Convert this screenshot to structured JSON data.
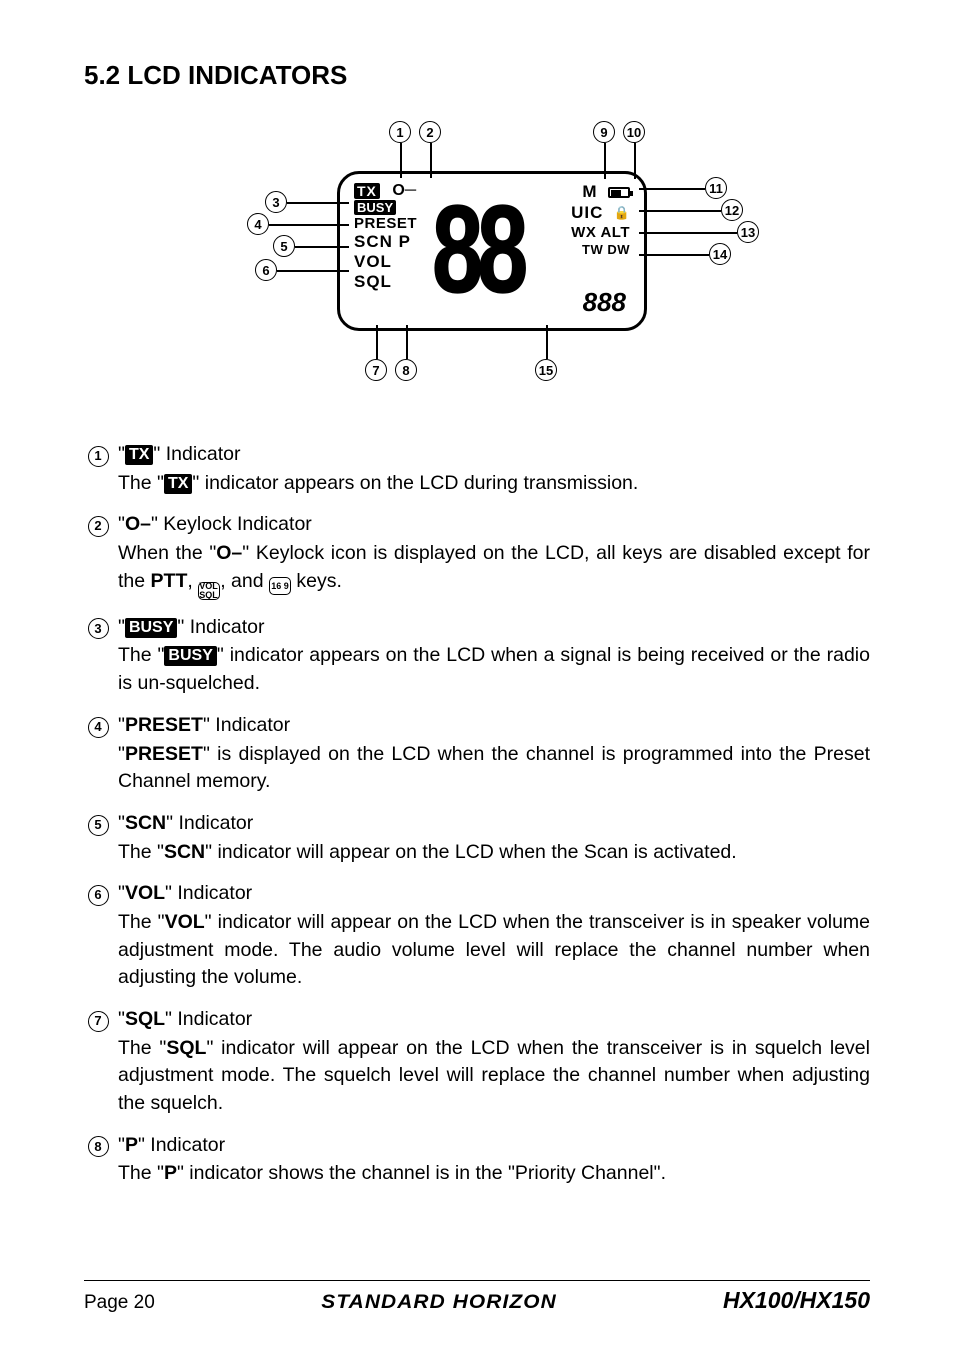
{
  "section_title": "5.2 LCD INDICATORS",
  "diagram": {
    "labels": [
      "1",
      "2",
      "3",
      "4",
      "5",
      "6",
      "7",
      "8",
      "9",
      "10",
      "11",
      "12",
      "13",
      "14",
      "15"
    ],
    "lcd_left": {
      "tx": "TX",
      "keylock": "O",
      "busy": "BUSY",
      "preset": "PRESET",
      "scn": "SCN P",
      "vol": "VOL",
      "sql": "SQL"
    },
    "lcd_right": {
      "m": "M",
      "uic": "UIC",
      "wxalt": "WX ALT",
      "twdw": "TW DW"
    },
    "big": "88",
    "small": "888"
  },
  "entries": [
    {
      "num": "1",
      "title_pre": "\"",
      "badge": "TX",
      "badge_type": "inv",
      "title_post": "\" Indicator",
      "desc_pre": "The \"",
      "desc_badge": "TX",
      "desc_badge_type": "inv",
      "desc_post": "\" indicator appears on the LCD during transmission."
    },
    {
      "num": "2",
      "title_pre": "\"",
      "badge": "O–",
      "badge_type": "plain-bold",
      "title_post": "\" Keylock Indicator",
      "desc_pre": "When the \"",
      "desc_badge": "O–",
      "desc_badge_type": "plain-bold",
      "desc_post": "\" Keylock icon is displayed on the LCD, all keys are disabled except for the ",
      "desc_extra_bold": "PTT",
      "desc_extra": ", ",
      "icon1": "VOL SQL",
      "desc_mid": ", and ",
      "icon2": "16 9",
      "desc_end": " keys."
    },
    {
      "num": "3",
      "title_pre": "\"",
      "badge": "BUSY",
      "badge_type": "inv",
      "title_post": "\" Indicator",
      "desc_pre": "The \"",
      "desc_badge": "BUSY",
      "desc_badge_type": "inv",
      "desc_post": "\" indicator appears on the LCD when a signal is being received or the radio is un-squelched."
    },
    {
      "num": "4",
      "title_pre": "\"",
      "badge": "PRESET",
      "badge_type": "plain-bold",
      "title_post": "\" Indicator",
      "desc": "\"PRESET\" is displayed on the LCD when the channel is programmed into the Preset Channel memory.",
      "desc_bold": [
        "PRESET"
      ]
    },
    {
      "num": "5",
      "title_pre": "\"",
      "badge": "SCN",
      "badge_type": "plain-bold",
      "title_post": "\" Indicator",
      "desc": "The \"SCN\" indicator will appear on the LCD when the Scan is activated.",
      "desc_bold": [
        "SCN"
      ]
    },
    {
      "num": "6",
      "title_pre": "\"",
      "badge": "VOL",
      "badge_type": "plain-bold",
      "title_post": "\" Indicator",
      "desc": "The \"VOL\" indicator will appear on the LCD when the transceiver is in speaker volume adjustment mode. The audio volume level will replace the channel number when adjusting the volume.",
      "desc_bold": [
        "VOL"
      ]
    },
    {
      "num": "7",
      "title_pre": "\"",
      "badge": "SQL",
      "badge_type": "plain-bold",
      "title_post": "\" Indicator",
      "desc": "The \"SQL\" indicator will appear on the LCD when the transceiver is in squelch level adjustment mode. The squelch level will replace the channel number when adjusting the squelch.",
      "desc_bold": [
        "SQL"
      ]
    },
    {
      "num": "8",
      "title_pre": "\"",
      "badge": "P",
      "badge_type": "plain-bold",
      "title_post": "\" Indicator",
      "desc": "The \"P\" indicator shows the channel is in the \"Priority Channel\".",
      "desc_bold": [
        "P"
      ]
    }
  ],
  "footer": {
    "page": "Page 20",
    "brand": "STANDARD HORIZON",
    "model": "HX100/HX150"
  }
}
